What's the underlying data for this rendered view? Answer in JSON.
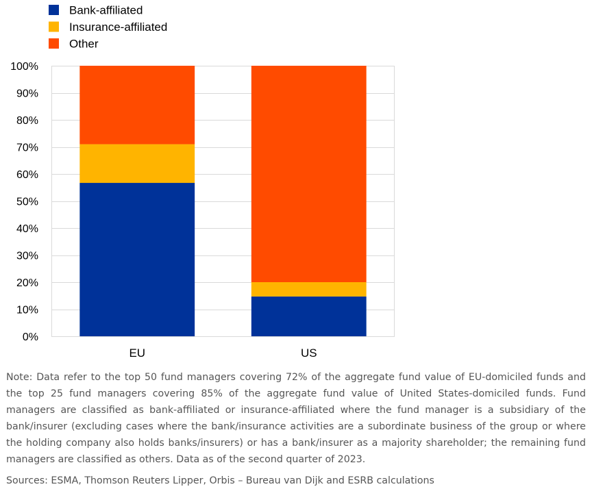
{
  "chart_data": {
    "type": "bar",
    "stacked": true,
    "categories": [
      "EU",
      "US"
    ],
    "series": [
      {
        "name": "Bank-affiliated",
        "color": "#003299",
        "values": [
          56.7,
          14.7
        ]
      },
      {
        "name": "Insurance-affiliated",
        "color": "#FFB400",
        "values": [
          14.3,
          5.3
        ]
      },
      {
        "name": "Other",
        "color": "#FF4B00",
        "values": [
          29.0,
          80.0
        ]
      }
    ],
    "ylim": [
      0,
      100
    ],
    "yticks": [
      "0%",
      "10%",
      "20%",
      "30%",
      "40%",
      "50%",
      "60%",
      "70%",
      "80%",
      "90%",
      "100%"
    ],
    "grid": true,
    "legend": "top-left"
  },
  "note": "Note: Data refer to the top 50 fund managers covering 72% of the aggregate fund value of EU-domiciled funds and the top 25 fund managers covering 85% of the aggregate fund value of United States-domiciled funds. Fund managers are classified as bank-affiliated or insurance-affiliated where the fund manager is a subsidiary of the bank/insurer (excluding cases where the bank/insurance activities are a subordinate business of the group or where the holding company also holds banks/insurers) or has a bank/insurer as a majority shareholder; the remaining fund managers are classified as others. Data as of the second quarter of 2023.",
  "sources": "Sources: ESMA, Thomson Reuters Lipper, Orbis – Bureau van Dijk and ESRB calculations"
}
